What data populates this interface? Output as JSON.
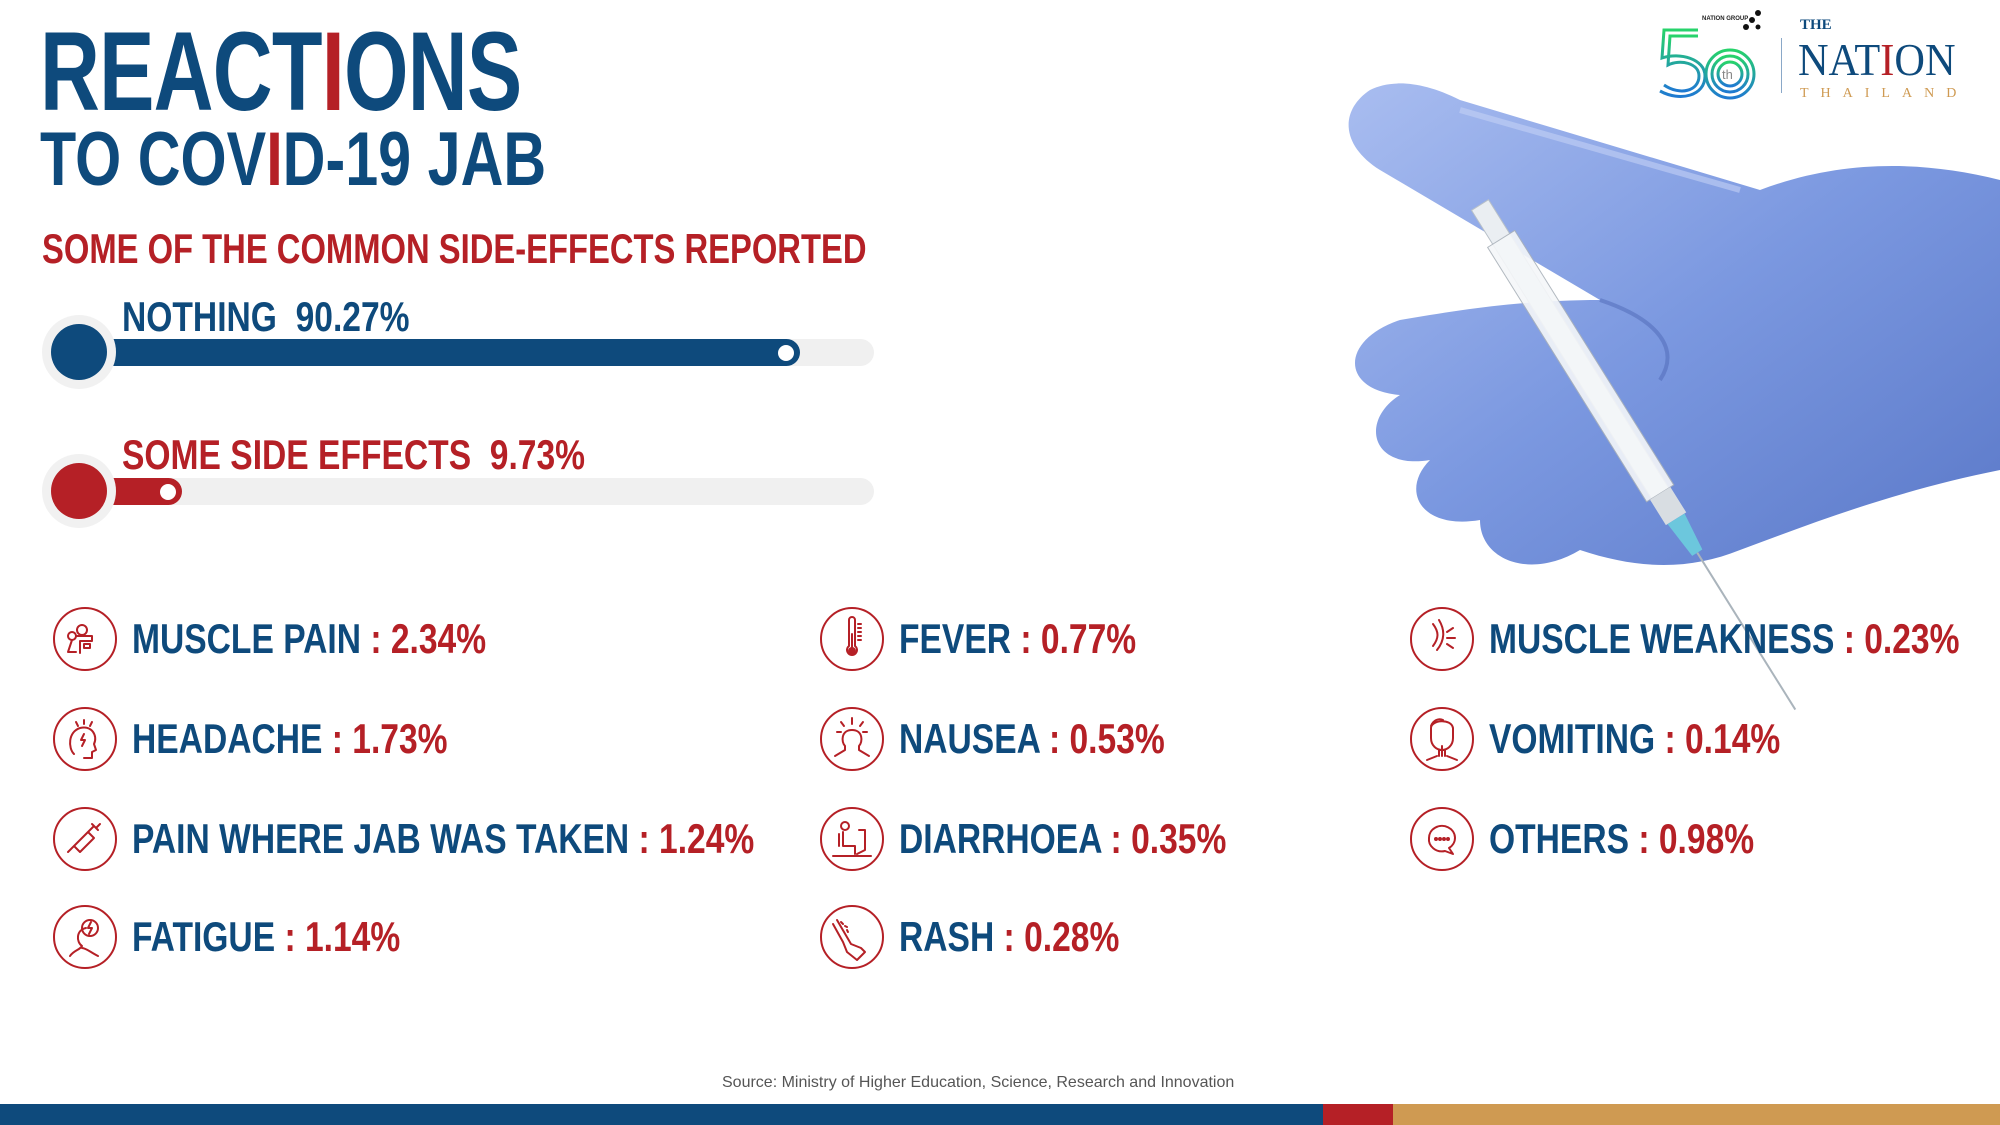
{
  "title": {
    "line1_a": "REACT",
    "line1_b": "I",
    "line1_c": "ONS",
    "line2_a": "TO COV",
    "line2_b": "I",
    "line2_c": "D-19 JAB"
  },
  "subtitle": "SOME OF THE COMMON SIDE-EFFECTS REPORTED",
  "summary_bars": [
    {
      "label": "NOTHING",
      "value": "90.27%",
      "percent": 90.27,
      "color": "#0e4a7c"
    },
    {
      "label": "SOME SIDE EFFECTS",
      "value": "9.73%",
      "percent": 9.73,
      "color": "#b52026"
    }
  ],
  "side_effects": [
    {
      "label": "MUSCLE PAIN",
      "sep": " : ",
      "value": "2.34%",
      "icon": "muscle-pain-icon"
    },
    {
      "label": "HEADACHE",
      "sep": " : ",
      "value": "1.73%",
      "icon": "headache-icon"
    },
    {
      "label": "PAIN WHERE JAB WAS TAKEN",
      "sep": " : ",
      "value": "1.24%",
      "icon": "syringe-icon"
    },
    {
      "label": "FATIGUE",
      "sep": " : ",
      "value": "1.14%",
      "icon": "fatigue-icon"
    },
    {
      "label": "FEVER",
      "sep": " : ",
      "value": "0.77%",
      "icon": "thermometer-icon"
    },
    {
      "label": "NAUSEA",
      "sep": " : ",
      "value": "0.53%",
      "icon": "nausea-icon"
    },
    {
      "label": "DIARRHOEA",
      "sep": " : ",
      "value": "0.35%",
      "icon": "toilet-icon"
    },
    {
      "label": "RASH",
      "sep": " : ",
      "value": "0.28%",
      "icon": "rash-icon"
    },
    {
      "label": "MUSCLE WEAKNESS",
      "sep": " : ",
      "value": "0.23%",
      "icon": "muscle-weakness-icon"
    },
    {
      "label": "VOMITING",
      "sep": " : ",
      "value": "0.14%",
      "icon": "vomiting-icon"
    },
    {
      "label": "OTHERS",
      "sep": " : ",
      "value": "0.98%",
      "icon": "speech-bubble-icon"
    }
  ],
  "source": "Source: Ministry of Higher Education, Science, Research and Innovation",
  "logo": {
    "anniversary": "50",
    "anniversary_suffix": "th",
    "group": "NATION GROUP",
    "the": "THE",
    "name_a": "NAT",
    "name_b": "I",
    "name_c": "ON",
    "country": "THAILAND"
  },
  "colors": {
    "navy": "#0e4a7c",
    "red": "#b52026",
    "gold": "#cf9a52",
    "glove": "#6f8fd8"
  }
}
